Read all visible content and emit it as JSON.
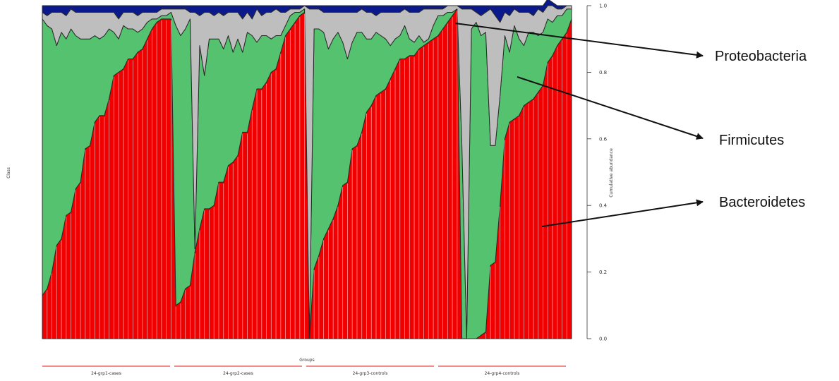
{
  "chart_data": {
    "type": "area",
    "stacked": true,
    "ylabel_left": "Class",
    "ylabel_right": "Cumulative abundance",
    "xlabel": "Groups",
    "ylim": [
      0,
      1
    ],
    "yticks": [
      "0.0",
      "0.2",
      "0.4",
      "0.6",
      "0.8",
      "1.0"
    ],
    "ytick_values": [
      0,
      0.2,
      0.4,
      0.6,
      0.8,
      1.0
    ],
    "groups": [
      {
        "label": "24-grp1-cases",
        "n": 28
      },
      {
        "label": "24-grp2-cases",
        "n": 28
      },
      {
        "label": "24-grp3-controls",
        "n": 28
      },
      {
        "label": "24-grp4-controls",
        "n": 28
      }
    ],
    "layer_colors": {
      "Bacteroidetes": "#f00000",
      "Firmicutes": "#55c270",
      "Proteobacteria": "#bebebe",
      "Other cyan": "#22e0f0",
      "Other navy": "#0a1a8c"
    },
    "sample_separator_color": "#ff9a9a",
    "series": [
      {
        "name": "Bacteroidetes",
        "values": [
          0.13,
          0.15,
          0.2,
          0.28,
          0.3,
          0.37,
          0.38,
          0.45,
          0.47,
          0.57,
          0.58,
          0.65,
          0.67,
          0.67,
          0.72,
          0.79,
          0.8,
          0.81,
          0.84,
          0.84,
          0.86,
          0.87,
          0.9,
          0.93,
          0.95,
          0.96,
          0.96,
          0.96,
          0.1,
          0.11,
          0.15,
          0.16,
          0.26,
          0.33,
          0.39,
          0.39,
          0.4,
          0.47,
          0.47,
          0.52,
          0.53,
          0.55,
          0.62,
          0.62,
          0.69,
          0.75,
          0.75,
          0.77,
          0.8,
          0.81,
          0.86,
          0.91,
          0.93,
          0.95,
          0.97,
          0.98,
          0.0,
          0.21,
          0.25,
          0.3,
          0.33,
          0.36,
          0.4,
          0.46,
          0.47,
          0.57,
          0.58,
          0.62,
          0.68,
          0.7,
          0.73,
          0.74,
          0.75,
          0.78,
          0.81,
          0.84,
          0.84,
          0.85,
          0.85,
          0.87,
          0.88,
          0.89,
          0.9,
          0.91,
          0.93,
          0.95,
          0.97,
          0.99,
          0.0,
          0.0,
          0.0,
          0.0,
          0.01,
          0.02,
          0.22,
          0.23,
          0.4,
          0.6,
          0.65,
          0.66,
          0.67,
          0.7,
          0.71,
          0.72,
          0.74,
          0.76,
          0.83,
          0.85,
          0.88,
          0.9,
          0.92,
          0.96
        ]
      },
      {
        "name": "Firmicutes",
        "values": [
          0.83,
          0.79,
          0.73,
          0.6,
          0.62,
          0.53,
          0.55,
          0.46,
          0.43,
          0.33,
          0.32,
          0.26,
          0.23,
          0.24,
          0.21,
          0.13,
          0.1,
          0.13,
          0.09,
          0.09,
          0.06,
          0.06,
          0.05,
          0.03,
          0.01,
          0.01,
          0.01,
          0.02,
          0.84,
          0.8,
          0.78,
          0.8,
          0.01,
          0.55,
          0.4,
          0.51,
          0.5,
          0.43,
          0.4,
          0.39,
          0.33,
          0.35,
          0.24,
          0.3,
          0.22,
          0.14,
          0.16,
          0.14,
          0.1,
          0.1,
          0.05,
          0.03,
          0.04,
          0.03,
          0.01,
          0.01,
          0.0,
          0.72,
          0.68,
          0.62,
          0.54,
          0.54,
          0.52,
          0.43,
          0.37,
          0.32,
          0.34,
          0.3,
          0.22,
          0.2,
          0.19,
          0.17,
          0.15,
          0.1,
          0.09,
          0.07,
          0.1,
          0.05,
          0.04,
          0.04,
          0.01,
          0.01,
          0.04,
          0.06,
          0.04,
          0.03,
          0.01,
          0.0,
          0.58,
          0.0,
          0.93,
          0.95,
          0.9,
          0.9,
          0.36,
          0.35,
          0.33,
          0.31,
          0.21,
          0.28,
          0.23,
          0.18,
          0.21,
          0.2,
          0.17,
          0.16,
          0.13,
          0.1,
          0.09,
          0.07,
          0.07,
          0.03
        ]
      },
      {
        "name": "Proteobacteria",
        "values": [
          0.02,
          0.03,
          0.05,
          0.1,
          0.06,
          0.07,
          0.06,
          0.07,
          0.08,
          0.08,
          0.08,
          0.07,
          0.08,
          0.07,
          0.05,
          0.06,
          0.06,
          0.04,
          0.05,
          0.05,
          0.05,
          0.05,
          0.03,
          0.02,
          0.02,
          0.02,
          0.02,
          0.01,
          0.05,
          0.08,
          0.06,
          0.02,
          0.71,
          0.09,
          0.19,
          0.08,
          0.07,
          0.08,
          0.1,
          0.07,
          0.12,
          0.08,
          0.1,
          0.06,
          0.05,
          0.1,
          0.06,
          0.07,
          0.08,
          0.08,
          0.07,
          0.04,
          0.02,
          0.01,
          0.01,
          0.01,
          0.99,
          0.06,
          0.06,
          0.06,
          0.11,
          0.08,
          0.06,
          0.09,
          0.14,
          0.09,
          0.06,
          0.07,
          0.08,
          0.08,
          0.05,
          0.07,
          0.08,
          0.1,
          0.08,
          0.07,
          0.05,
          0.08,
          0.09,
          0.07,
          0.1,
          0.09,
          0.05,
          0.02,
          0.02,
          0.02,
          0.02,
          0.01,
          0.41,
          0.99,
          0.06,
          0.03,
          0.06,
          0.06,
          0.41,
          0.39,
          0.22,
          0.07,
          0.11,
          0.05,
          0.08,
          0.1,
          0.06,
          0.05,
          0.08,
          0.06,
          0.04,
          0.05,
          0.02,
          0.02,
          0.01,
          0.01
        ]
      },
      {
        "name": "Other cyan",
        "values": [
          0,
          0,
          0,
          0,
          0,
          0,
          0,
          0,
          0,
          0,
          0,
          0,
          0,
          0,
          0,
          0,
          0,
          0,
          0,
          0,
          0,
          0,
          0,
          0,
          0,
          0,
          0,
          0,
          0,
          0,
          0,
          0,
          0,
          0,
          0,
          0,
          0,
          0,
          0,
          0,
          0,
          0,
          0,
          0,
          0,
          0,
          0,
          0,
          0,
          0,
          0,
          0,
          0,
          0,
          0,
          0,
          0,
          0,
          0,
          0,
          0,
          0,
          0,
          0,
          0,
          0,
          0,
          0,
          0,
          0,
          0,
          0,
          0,
          0,
          0,
          0,
          0,
          0,
          0,
          0,
          0,
          0,
          0,
          0,
          0,
          0,
          0,
          0,
          0,
          0,
          0,
          0,
          0,
          0,
          0,
          0,
          0,
          0,
          0,
          0,
          0,
          0,
          0,
          0,
          0,
          0,
          0,
          0,
          0,
          0,
          0,
          0
        ]
      },
      {
        "name": "Other navy",
        "values": [
          0.02,
          0.03,
          0.02,
          0.02,
          0.02,
          0.03,
          0.01,
          0.02,
          0.02,
          0.02,
          0.02,
          0.02,
          0.02,
          0.02,
          0.02,
          0.02,
          0.04,
          0.02,
          0.02,
          0.02,
          0.03,
          0.02,
          0.02,
          0.02,
          0.02,
          0.01,
          0.01,
          0.01,
          0.01,
          0.01,
          0.01,
          0.02,
          0.02,
          0.03,
          0.02,
          0.02,
          0.03,
          0.02,
          0.03,
          0.02,
          0.02,
          0.02,
          0.04,
          0.02,
          0.04,
          0.01,
          0.03,
          0.02,
          0.02,
          0.01,
          0.02,
          0.02,
          0.01,
          0.01,
          0.01,
          0.0,
          0.01,
          0.01,
          0.01,
          0.02,
          0.02,
          0.02,
          0.02,
          0.02,
          0.02,
          0.02,
          0.02,
          0.01,
          0.02,
          0.02,
          0.03,
          0.02,
          0.02,
          0.02,
          0.02,
          0.02,
          0.01,
          0.02,
          0.02,
          0.02,
          0.01,
          0.01,
          0.01,
          0.01,
          0.01,
          0.0,
          0.0,
          0.0,
          0.01,
          0.01,
          0.01,
          0.02,
          0.03,
          0.02,
          0.01,
          0.03,
          0.05,
          0.02,
          0.03,
          0.01,
          0.02,
          0.02,
          0.02,
          0.03,
          0.01,
          0.02,
          0.02,
          0.01,
          0.01,
          0.01,
          0.0,
          0.0
        ]
      }
    ],
    "annotations": [
      {
        "text": "Proteobacteria",
        "points_to_layer": "Proteobacteria"
      },
      {
        "text": "Firmicutes",
        "points_to_layer": "Firmicutes"
      },
      {
        "text": "Bacteroidetes",
        "points_to_layer": "Bacteroidetes"
      }
    ]
  }
}
